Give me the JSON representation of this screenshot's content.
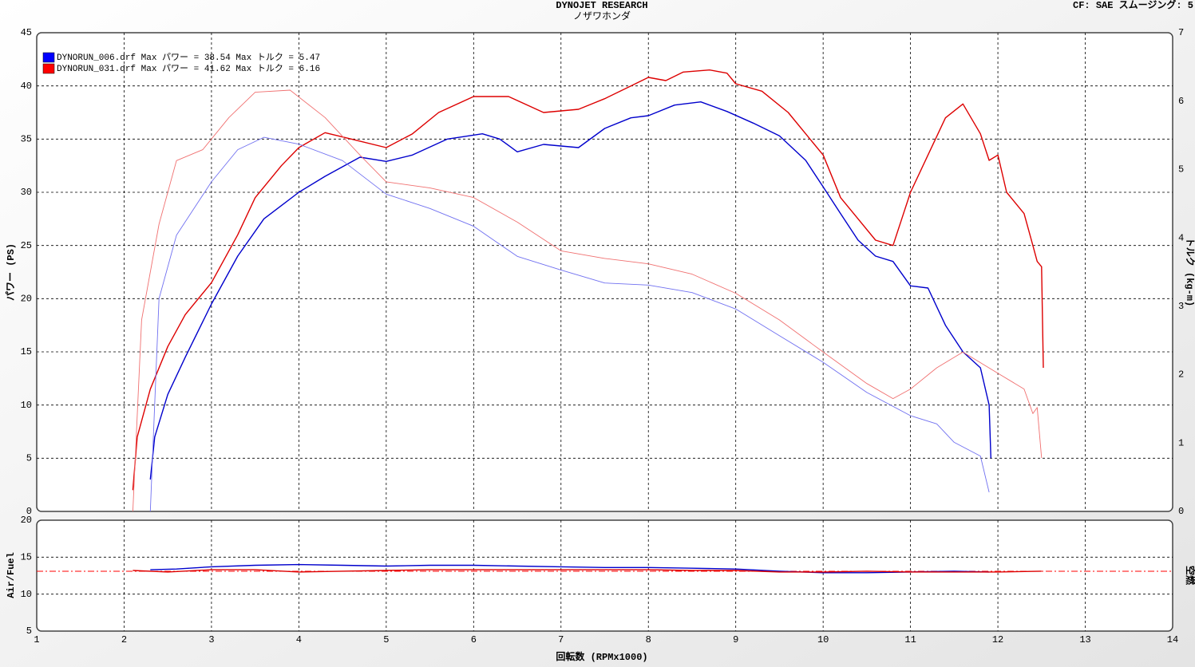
{
  "header": {
    "title": "DYNOJET  RESEARCH",
    "subtitle": "ノザワホンダ",
    "info": "CF: SAE  スムージング: 5"
  },
  "chart_data": [
    {
      "type": "line",
      "y_label": "パワー (PS)",
      "y2_label": "トルク (kg-m)",
      "grid": true,
      "ylim": [
        0,
        45
      ],
      "yticks": [
        0,
        5,
        10,
        15,
        20,
        25,
        30,
        35,
        40,
        45
      ],
      "y2lim": [
        0,
        7
      ],
      "y2ticks": [
        0,
        1,
        2,
        3,
        4,
        5,
        6,
        7
      ],
      "legend": [
        {
          "label": "DYNORUN_006.drf Max パワー = 38.54  Max トルク = 5.47",
          "color": "#0000ff"
        },
        {
          "label": "DYNORUN_031.drf Max パワー = 41.62  Max トルク = 6.16",
          "color": "#ff0000"
        }
      ],
      "series": [
        {
          "color": "#0000cc",
          "width": 1.4,
          "x": [
            2.3,
            2.35,
            2.5,
            2.7,
            3.0,
            3.3,
            3.6,
            4.0,
            4.3,
            4.7,
            5.0,
            5.3,
            5.7,
            6.1,
            6.3,
            6.5,
            6.8,
            7.2,
            7.5,
            7.8,
            8.0,
            8.3,
            8.6,
            8.9,
            9.2,
            9.5,
            9.8,
            10.0,
            10.2,
            10.4,
            10.6,
            10.8,
            11.0,
            11.2,
            11.4,
            11.6,
            11.8,
            11.9,
            11.92
          ],
          "values": [
            3,
            7,
            11,
            14.5,
            19.5,
            24,
            27.5,
            30,
            31.5,
            33.3,
            32.9,
            33.5,
            35,
            35.5,
            35,
            33.8,
            34.5,
            34.2,
            36,
            37,
            37.2,
            38.2,
            38.5,
            37.6,
            36.5,
            35.3,
            33,
            30.5,
            28,
            25.5,
            24,
            23.5,
            21.2,
            21,
            17.5,
            15,
            13.5,
            10,
            5
          ]
        },
        {
          "color": "#dd0000",
          "width": 1.4,
          "x": [
            2.1,
            2.15,
            2.3,
            2.5,
            2.7,
            3.0,
            3.3,
            3.5,
            3.8,
            4.0,
            4.3,
            4.6,
            5.0,
            5.3,
            5.6,
            6.0,
            6.4,
            6.8,
            7.2,
            7.5,
            7.8,
            8.0,
            8.2,
            8.4,
            8.7,
            8.9,
            9.0,
            9.3,
            9.6,
            9.8,
            10.0,
            10.2,
            10.4,
            10.6,
            10.8,
            11.0,
            11.2,
            11.4,
            11.6,
            11.8,
            11.9,
            12.0,
            12.1,
            12.3,
            12.4,
            12.45,
            12.5,
            12.52
          ],
          "values": [
            2,
            7,
            11.5,
            15.5,
            18.5,
            21.5,
            26,
            29.5,
            32.5,
            34.2,
            35.6,
            35,
            34.2,
            35.5,
            37.5,
            39,
            39,
            37.5,
            37.8,
            38.8,
            40,
            40.8,
            40.5,
            41.3,
            41.5,
            41.2,
            40.2,
            39.5,
            37.5,
            35.5,
            33.5,
            29.5,
            27.5,
            25.5,
            25,
            30,
            33.5,
            37,
            38.3,
            35.5,
            33,
            33.5,
            30,
            28,
            25,
            23.5,
            23,
            13.5
          ]
        },
        {
          "color": "#7070f0",
          "width": 0.9,
          "axis": "y2",
          "x": [
            2.3,
            2.4,
            2.6,
            3.0,
            3.3,
            3.6,
            4.0,
            4.5,
            5.0,
            5.5,
            6.0,
            6.5,
            7.0,
            7.5,
            8.0,
            8.5,
            9.0,
            9.5,
            10.0,
            10.5,
            11.0,
            11.3,
            11.5,
            11.8,
            11.9
          ],
          "values": [
            0,
            3.11,
            4.04,
            4.82,
            5.29,
            5.47,
            5.37,
            5.13,
            4.64,
            4.43,
            4.17,
            3.73,
            3.53,
            3.34,
            3.31,
            3.2,
            2.96,
            2.57,
            2.18,
            1.74,
            1.4,
            1.28,
            1.01,
            0.81,
            0.28
          ]
        },
        {
          "color": "#f07070",
          "width": 0.9,
          "axis": "y2",
          "x": [
            2.1,
            2.2,
            2.4,
            2.6,
            2.9,
            3.2,
            3.5,
            3.9,
            4.3,
            4.7,
            5.0,
            5.5,
            6.0,
            6.5,
            7.0,
            7.5,
            8.0,
            8.5,
            9.0,
            9.5,
            10.0,
            10.5,
            10.8,
            11.0,
            11.3,
            11.6,
            12.0,
            12.3,
            12.4,
            12.45,
            12.5
          ],
          "values": [
            0,
            2.8,
            4.2,
            5.13,
            5.29,
            5.76,
            6.13,
            6.16,
            5.76,
            5.21,
            4.82,
            4.73,
            4.59,
            4.23,
            3.81,
            3.7,
            3.62,
            3.47,
            3.19,
            2.8,
            2.33,
            1.87,
            1.65,
            1.79,
            2.1,
            2.33,
            2.02,
            1.79,
            1.43,
            1.52,
            0.78
          ]
        }
      ]
    },
    {
      "type": "line",
      "y_label": "Air/Fuel",
      "y2_label": "空燃",
      "x_label": "回転数 (RPMx1000)",
      "grid": true,
      "xlim": [
        1,
        14
      ],
      "xticks": [
        1,
        2,
        3,
        4,
        5,
        6,
        7,
        8,
        9,
        10,
        11,
        12,
        13,
        14
      ],
      "ylim": [
        5,
        20
      ],
      "yticks": [
        5,
        10,
        15,
        20
      ],
      "reference_line": {
        "value": 13.1,
        "color": "#ff0000"
      },
      "series": [
        {
          "color": "#0000cc",
          "width": 1.4,
          "x": [
            2.3,
            2.6,
            3.0,
            3.5,
            4.0,
            4.5,
            5.0,
            5.5,
            6.0,
            6.5,
            7.0,
            7.5,
            8.0,
            8.5,
            9.0,
            9.5,
            10.0,
            10.5,
            11.0,
            11.5,
            11.9
          ],
          "values": [
            13.3,
            13.4,
            13.7,
            13.9,
            14.0,
            13.9,
            13.8,
            13.9,
            13.9,
            13.8,
            13.7,
            13.6,
            13.6,
            13.5,
            13.4,
            13.1,
            12.9,
            12.9,
            13.0,
            13.1,
            13.0
          ]
        },
        {
          "color": "#dd0000",
          "width": 1.4,
          "x": [
            2.1,
            2.5,
            3.0,
            3.5,
            4.0,
            4.5,
            5.0,
            5.5,
            6.0,
            6.5,
            7.0,
            7.5,
            8.0,
            8.5,
            9.0,
            9.5,
            10.0,
            10.5,
            11.0,
            11.5,
            12.0,
            12.5
          ],
          "values": [
            13.2,
            13.0,
            13.3,
            13.3,
            13.0,
            13.1,
            13.2,
            13.3,
            13.3,
            13.3,
            13.3,
            13.3,
            13.3,
            13.2,
            13.2,
            13.0,
            13.0,
            13.1,
            13.0,
            13.0,
            13.0,
            13.1
          ]
        }
      ]
    }
  ]
}
